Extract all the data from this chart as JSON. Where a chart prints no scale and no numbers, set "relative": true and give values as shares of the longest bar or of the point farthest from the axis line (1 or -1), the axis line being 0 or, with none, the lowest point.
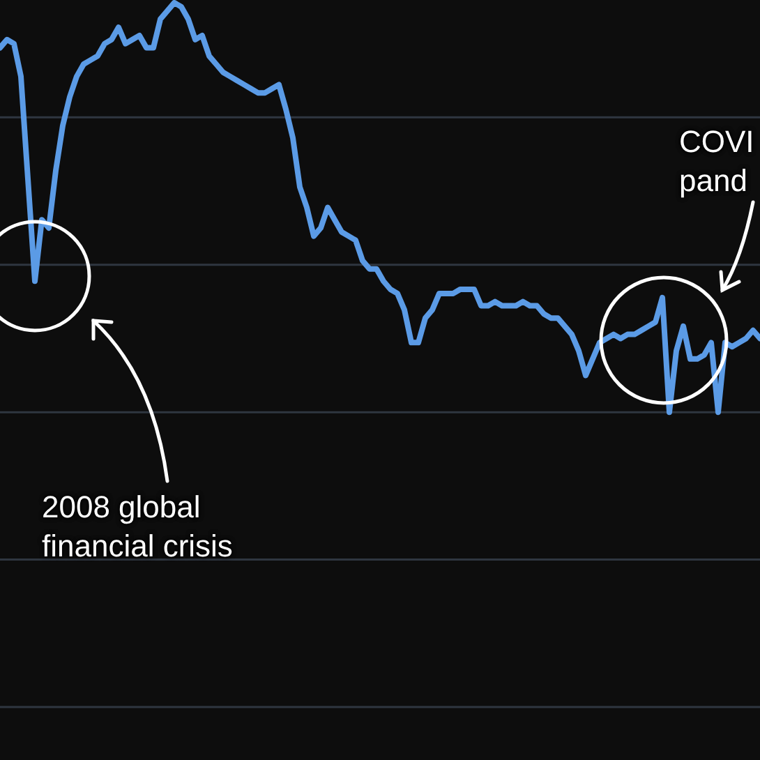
{
  "chart_data": {
    "type": "line",
    "relative": true,
    "legend": false,
    "ref_lines": [
      {
        "axis": "y",
        "value": 0.72,
        "color": "#2f3640"
      },
      {
        "axis": "y",
        "value": 0.36,
        "color": "#2f3640"
      },
      {
        "axis": "y",
        "value": 0,
        "color": "#2f3640"
      },
      {
        "axis": "y",
        "value": -0.36,
        "color": "#2f3640"
      },
      {
        "axis": "y",
        "value": -0.72,
        "color": "#2f3640"
      }
    ],
    "marker": "none",
    "line_style": "solid",
    "categories": [
      null,
      null,
      null,
      null,
      null,
      null,
      null,
      null,
      null,
      null,
      null,
      null,
      null,
      null,
      null,
      null,
      null,
      null,
      null,
      null,
      null,
      null,
      null,
      null,
      null,
      null,
      null,
      null,
      null,
      null,
      null,
      null,
      null,
      null,
      null,
      null,
      null,
      null,
      null,
      null,
      null,
      null,
      null,
      null,
      null,
      null,
      null,
      null,
      null,
      null,
      null,
      null,
      null,
      null,
      null,
      null,
      null,
      null,
      null,
      null,
      null,
      null,
      null,
      null,
      null,
      null,
      null,
      null,
      null,
      null,
      null,
      null,
      null,
      null,
      null,
      null,
      null,
      null,
      null,
      null,
      null,
      null,
      null,
      null,
      null,
      null,
      null,
      null,
      null,
      null,
      null,
      null,
      null,
      null,
      null,
      null,
      null,
      null,
      null,
      null,
      null,
      null,
      null,
      null,
      null,
      null,
      null,
      null,
      null,
      null
    ],
    "series": [
      {
        "color": "#5b9be6",
        "values": [
          0.89,
          0.91,
          0.9,
          0.82,
          0.57,
          0.32,
          0.47,
          0.45,
          0.59,
          0.7,
          0.77,
          0.82,
          0.85,
          0.86,
          0.87,
          0.9,
          0.91,
          0.94,
          0.9,
          0.91,
          0.92,
          0.89,
          0.89,
          0.96,
          0.98,
          1,
          0.99,
          0.96,
          0.91,
          0.92,
          0.87,
          0.85,
          0.83,
          0.82,
          0.81,
          0.8,
          0.79,
          0.78,
          0.78,
          0.79,
          0.8,
          0.74,
          0.67,
          0.55,
          0.5,
          0.43,
          0.45,
          0.5,
          0.47,
          0.44,
          0.43,
          0.42,
          0.37,
          0.35,
          0.35,
          0.32,
          0.3,
          0.29,
          0.25,
          0.17,
          0.17,
          0.23,
          0.25,
          0.29,
          0.29,
          0.29,
          0.3,
          0.3,
          0.3,
          0.26,
          0.26,
          0.27,
          0.26,
          0.26,
          0.26,
          0.27,
          0.26,
          0.26,
          0.24,
          0.23,
          0.23,
          0.21,
          0.19,
          0.15,
          0.09,
          0.13,
          0.17,
          0.18,
          0.19,
          0.18,
          0.19,
          0.19,
          0.2,
          0.21,
          0.22,
          0.28,
          0,
          0.15,
          0.21,
          0.13,
          0.13,
          0.14,
          0.17,
          0,
          0.17,
          0.16,
          0.17,
          0.18,
          0.2,
          0.18
        ]
      }
    ],
    "annotations": [
      "2008 global\nfinancial crisis",
      "COVI\npand"
    ]
  }
}
